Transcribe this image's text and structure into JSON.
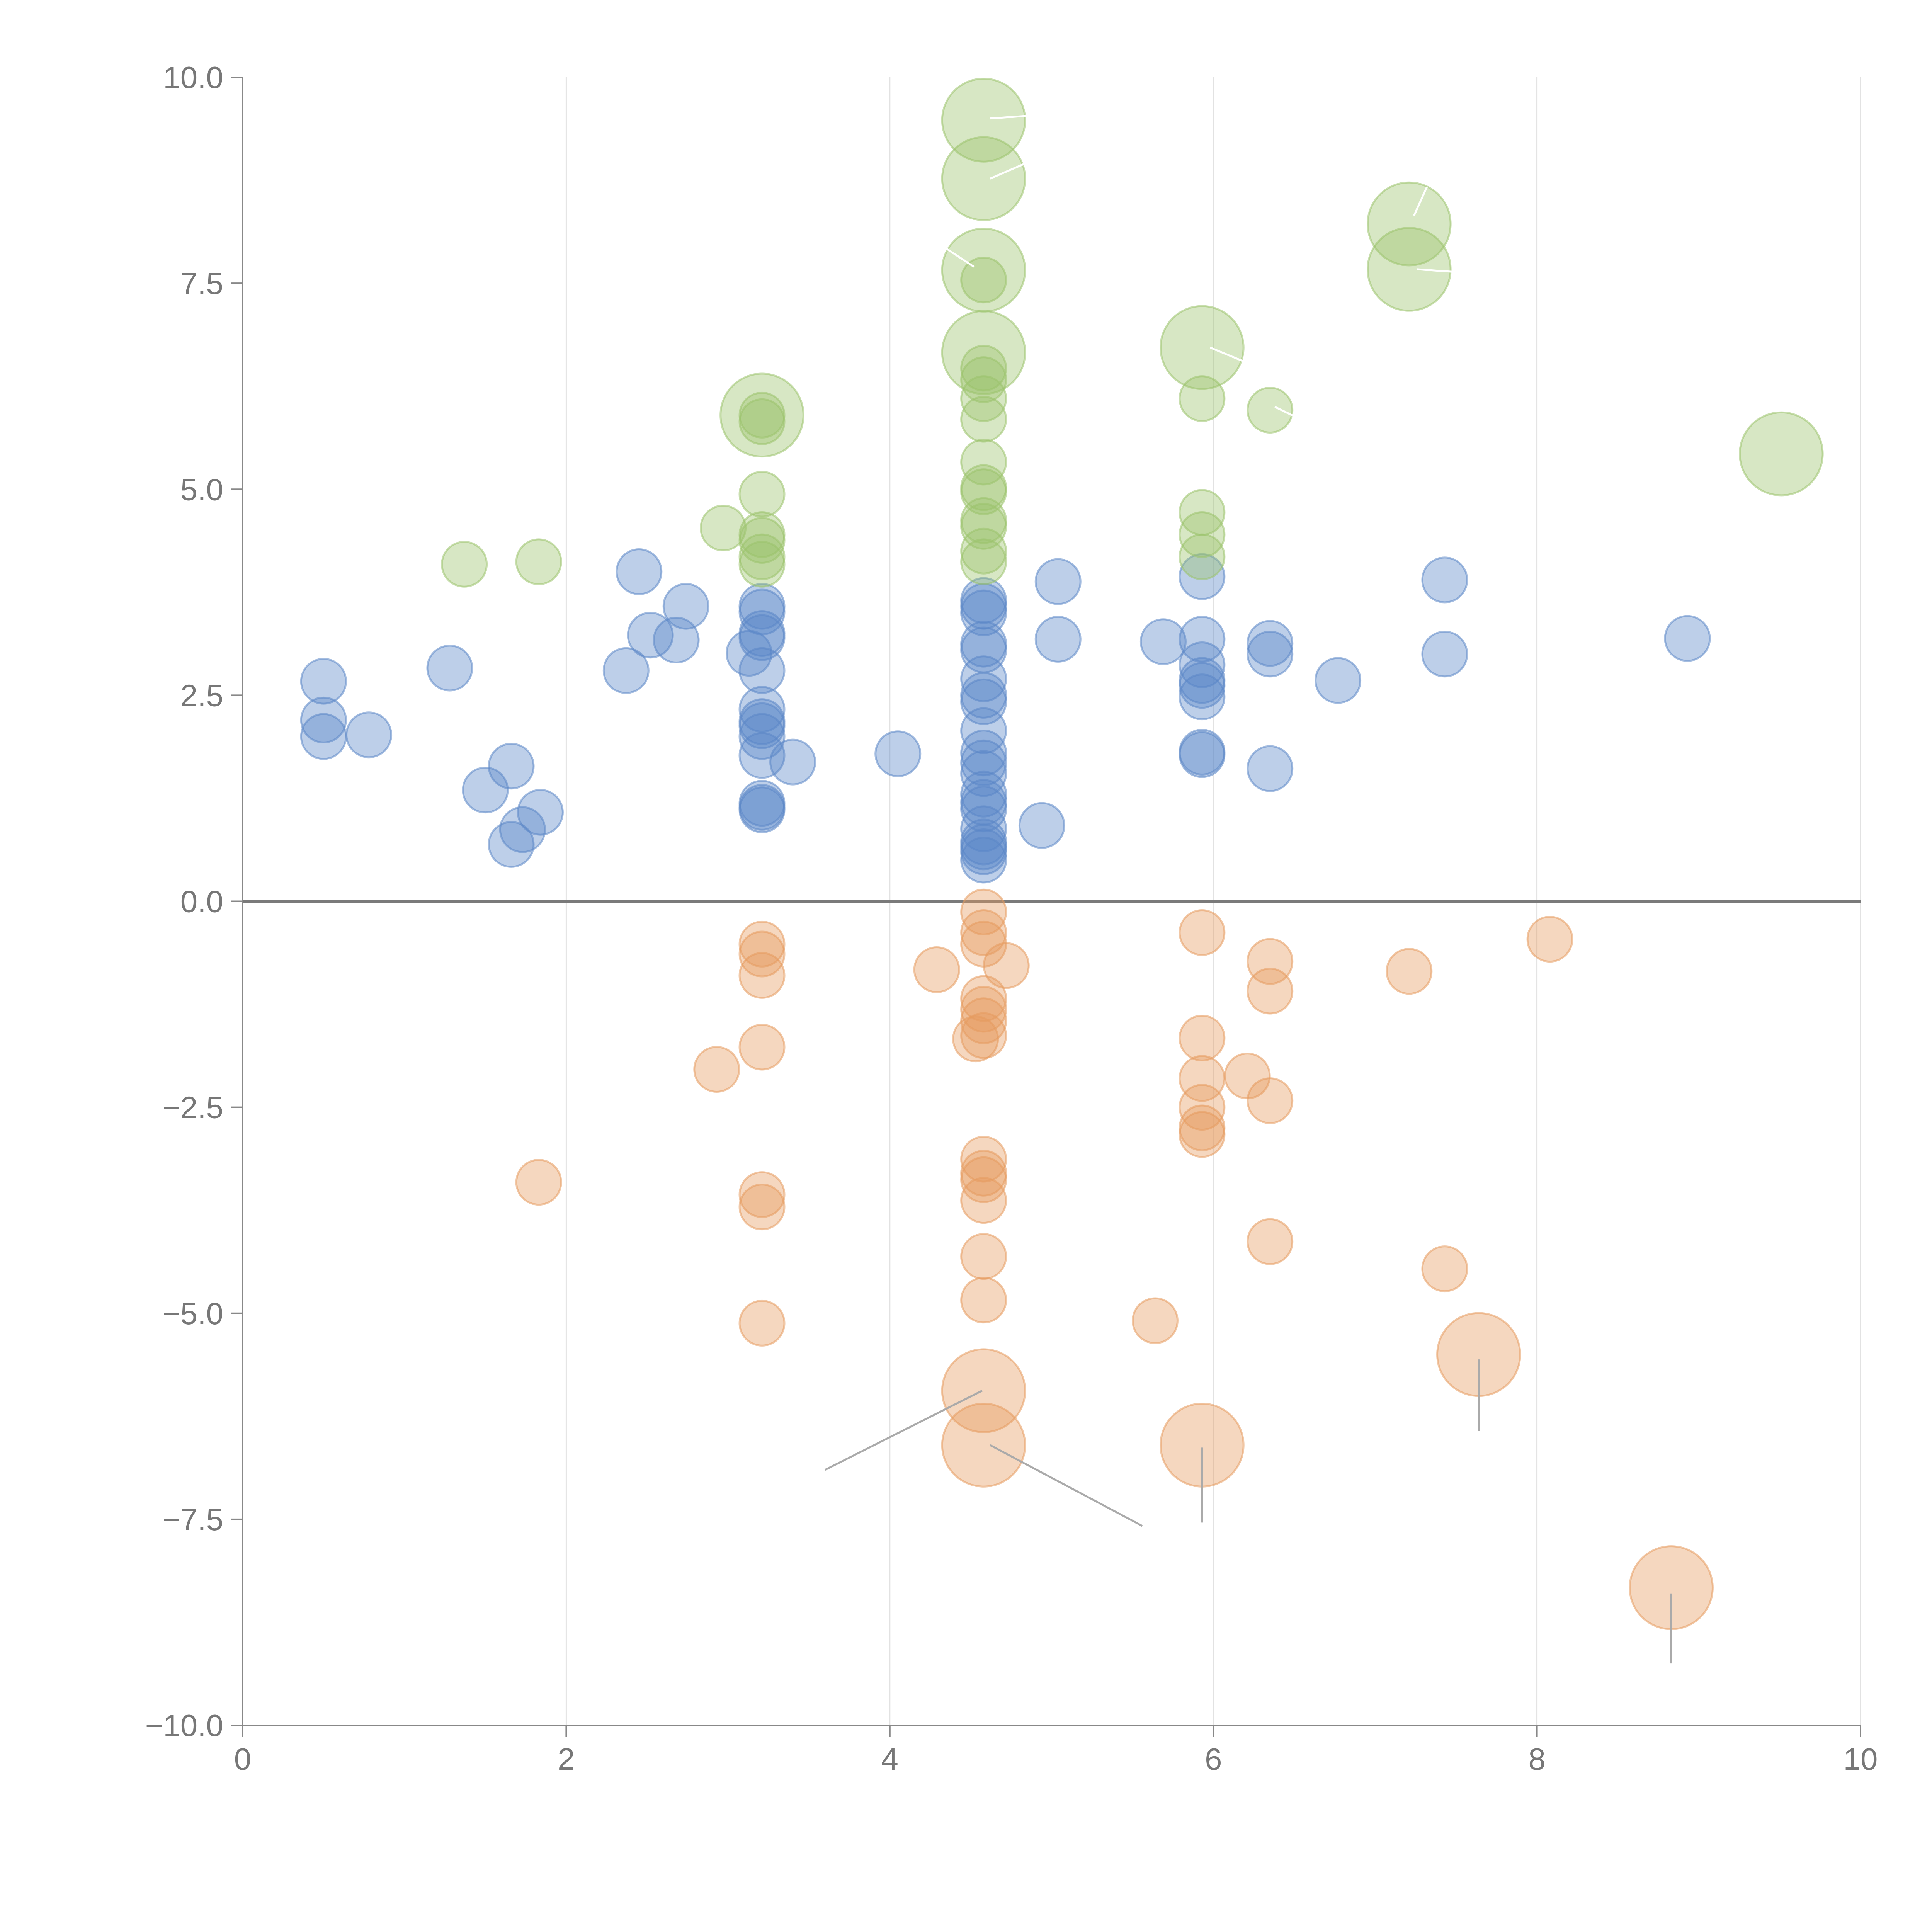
{
  "chart_data": {
    "type": "scatter",
    "title": "",
    "xlabel": "",
    "ylabel": "",
    "xlim": [
      0,
      10
    ],
    "ylim": [
      -10,
      10
    ],
    "grid": "vertical",
    "baseline": 0,
    "x_ticks": [
      "0",
      "2",
      "4",
      "6",
      "8",
      "10"
    ],
    "y_ticks": [
      "10.0",
      "7.5",
      "5.0",
      "2.5",
      "0.0",
      "−2.5",
      "−5.0",
      "−7.5",
      "−10.0"
    ],
    "series": [
      {
        "name": "blue",
        "color": "#5b87c7",
        "points": [
          [
            0.5,
            2.67,
            1
          ],
          [
            0.5,
            2.2,
            1
          ],
          [
            0.5,
            2.0,
            1
          ],
          [
            0.78,
            2.02,
            1
          ],
          [
            1.28,
            2.83,
            1
          ],
          [
            1.5,
            1.35,
            1
          ],
          [
            1.66,
            1.64,
            1
          ],
          [
            1.66,
            0.69,
            1
          ],
          [
            1.73,
            0.87,
            1
          ],
          [
            1.84,
            1.08,
            1
          ],
          [
            2.37,
            2.8,
            1
          ],
          [
            2.45,
            4.0,
            1
          ],
          [
            2.52,
            3.23,
            1
          ],
          [
            2.68,
            3.17,
            1
          ],
          [
            2.74,
            3.58,
            1
          ],
          [
            3.13,
            3.01,
            1
          ],
          [
            3.21,
            3.58,
            1
          ],
          [
            3.21,
            3.51,
            1
          ],
          [
            3.21,
            3.25,
            1
          ],
          [
            3.21,
            3.2,
            1
          ],
          [
            3.21,
            2.8,
            1
          ],
          [
            3.21,
            2.33,
            1
          ],
          [
            3.21,
            2.18,
            1
          ],
          [
            3.21,
            2.13,
            1
          ],
          [
            3.21,
            2.0,
            1
          ],
          [
            3.21,
            1.77,
            1
          ],
          [
            3.21,
            1.19,
            1
          ],
          [
            3.21,
            1.14,
            1
          ],
          [
            3.21,
            1.11,
            1
          ],
          [
            3.4,
            1.69,
            1
          ],
          [
            4.05,
            1.79,
            1
          ],
          [
            4.58,
            3.65,
            1
          ],
          [
            4.58,
            3.58,
            1
          ],
          [
            4.58,
            3.5,
            1
          ],
          [
            4.58,
            3.12,
            1
          ],
          [
            4.58,
            3.05,
            1
          ],
          [
            4.58,
            2.7,
            1
          ],
          [
            4.58,
            2.5,
            1
          ],
          [
            4.58,
            2.42,
            1
          ],
          [
            4.58,
            2.07,
            1
          ],
          [
            4.58,
            1.8,
            1
          ],
          [
            4.58,
            1.68,
            1
          ],
          [
            4.58,
            1.55,
            1
          ],
          [
            4.58,
            1.3,
            1
          ],
          [
            4.58,
            1.2,
            1
          ],
          [
            4.58,
            1.12,
            1
          ],
          [
            4.58,
            0.88,
            1
          ],
          [
            4.58,
            0.72,
            1
          ],
          [
            4.58,
            0.66,
            1
          ],
          [
            4.58,
            0.6,
            1
          ],
          [
            4.58,
            0.5,
            1
          ],
          [
            4.94,
            0.92,
            1
          ],
          [
            5.04,
            3.88,
            1
          ],
          [
            5.04,
            3.18,
            1
          ],
          [
            5.69,
            3.15,
            1
          ],
          [
            5.93,
            3.94,
            1
          ],
          [
            5.93,
            3.18,
            1
          ],
          [
            5.93,
            2.87,
            1
          ],
          [
            5.93,
            2.68,
            1
          ],
          [
            5.93,
            2.62,
            1
          ],
          [
            5.93,
            2.48,
            1
          ],
          [
            5.93,
            1.81,
            1
          ],
          [
            5.93,
            1.78,
            1
          ],
          [
            6.35,
            3.13,
            1
          ],
          [
            6.35,
            3.0,
            1
          ],
          [
            6.35,
            1.61,
            1
          ],
          [
            6.77,
            2.68,
            1
          ],
          [
            7.43,
            3.9,
            1
          ],
          [
            7.43,
            3.0,
            1
          ],
          [
            8.93,
            3.19,
            1
          ]
        ]
      },
      {
        "name": "green",
        "color": "#9bc26b",
        "points": [
          [
            1.37,
            4.09,
            1
          ],
          [
            1.83,
            4.12,
            1
          ],
          [
            2.97,
            4.53,
            1
          ],
          [
            3.21,
            5.9,
            1.85
          ],
          [
            3.21,
            5.9,
            1
          ],
          [
            3.21,
            5.82,
            1
          ],
          [
            3.21,
            4.94,
            1
          ],
          [
            3.21,
            4.45,
            1
          ],
          [
            3.21,
            4.38,
            1
          ],
          [
            3.21,
            4.18,
            1
          ],
          [
            3.21,
            4.09,
            1
          ],
          [
            4.58,
            9.48,
            1.85
          ],
          [
            4.58,
            8.77,
            1.85
          ],
          [
            4.58,
            7.66,
            1.85
          ],
          [
            4.58,
            7.54,
            1
          ],
          [
            4.58,
            6.66,
            1.85
          ],
          [
            4.58,
            6.47,
            1
          ],
          [
            4.58,
            6.33,
            1
          ],
          [
            4.58,
            6.1,
            1
          ],
          [
            4.58,
            5.85,
            1
          ],
          [
            4.58,
            5.33,
            1
          ],
          [
            4.58,
            5.02,
            1
          ],
          [
            4.58,
            4.97,
            1
          ],
          [
            4.58,
            4.62,
            1
          ],
          [
            4.58,
            4.55,
            1
          ],
          [
            4.58,
            4.25,
            1
          ],
          [
            4.58,
            4.12,
            1
          ],
          [
            5.93,
            6.72,
            1.85
          ],
          [
            5.93,
            6.1,
            1
          ],
          [
            5.93,
            4.72,
            1
          ],
          [
            5.93,
            4.45,
            1
          ],
          [
            5.93,
            4.18,
            1
          ],
          [
            6.35,
            5.96,
            1
          ],
          [
            7.21,
            8.22,
            1.85
          ],
          [
            7.21,
            7.67,
            1.85
          ],
          [
            9.51,
            5.43,
            1.85
          ]
        ]
      },
      {
        "name": "orange",
        "color": "#e69a5f",
        "points": [
          [
            1.83,
            -3.41,
            1
          ],
          [
            2.93,
            -2.04,
            1
          ],
          [
            3.21,
            -0.52,
            1
          ],
          [
            3.21,
            -0.64,
            1
          ],
          [
            3.21,
            -0.9,
            1
          ],
          [
            3.21,
            -1.77,
            1
          ],
          [
            3.21,
            -3.56,
            1
          ],
          [
            3.21,
            -3.71,
            1
          ],
          [
            3.21,
            -5.12,
            1
          ],
          [
            4.29,
            -0.83,
            1
          ],
          [
            4.58,
            -0.13,
            1
          ],
          [
            4.58,
            -0.38,
            1
          ],
          [
            4.58,
            -0.52,
            1
          ],
          [
            4.58,
            -1.18,
            1
          ],
          [
            4.58,
            -1.31,
            1
          ],
          [
            4.58,
            -1.45,
            1
          ],
          [
            4.58,
            -1.63,
            1
          ],
          [
            4.58,
            -3.13,
            1
          ],
          [
            4.58,
            -3.3,
            1
          ],
          [
            4.58,
            -3.38,
            1
          ],
          [
            4.58,
            -3.63,
            1
          ],
          [
            4.58,
            -4.31,
            1
          ],
          [
            4.58,
            -4.84,
            1
          ],
          [
            4.58,
            -5.94,
            1.85
          ],
          [
            4.58,
            -6.6,
            1.85
          ],
          [
            4.53,
            -1.67,
            1
          ],
          [
            4.72,
            -0.78,
            1
          ],
          [
            5.64,
            -5.09,
            1
          ],
          [
            5.93,
            -0.38,
            1
          ],
          [
            5.93,
            -1.66,
            1
          ],
          [
            5.93,
            -2.15,
            1
          ],
          [
            5.93,
            -2.5,
            1
          ],
          [
            5.93,
            -2.75,
            1
          ],
          [
            5.93,
            -2.83,
            1
          ],
          [
            5.93,
            -6.6,
            1.85
          ],
          [
            6.21,
            -2.12,
            1
          ],
          [
            6.35,
            -0.73,
            1
          ],
          [
            6.35,
            -1.09,
            1
          ],
          [
            6.35,
            -2.42,
            1
          ],
          [
            6.35,
            -4.13,
            1
          ],
          [
            7.21,
            -0.85,
            1
          ],
          [
            7.43,
            -4.46,
            1
          ],
          [
            7.64,
            -5.5,
            1.85
          ],
          [
            8.08,
            -0.46,
            1
          ],
          [
            8.83,
            -8.33,
            1.85
          ]
        ]
      }
    ],
    "annotation_leaders": [
      {
        "from": [
          4.62,
          9.5
        ],
        "to": [
          4.98,
          9.55
        ],
        "color": "#ffffff"
      },
      {
        "from": [
          4.62,
          8.77
        ],
        "to": [
          4.95,
          9.05
        ],
        "color": "#ffffff"
      },
      {
        "from": [
          4.52,
          7.7
        ],
        "to": [
          4.25,
          8.05
        ],
        "color": "#ffffff"
      },
      {
        "from": [
          5.98,
          6.72
        ],
        "to": [
          6.35,
          6.42
        ],
        "color": "#ffffff"
      },
      {
        "from": [
          6.38,
          6.0
        ],
        "to": [
          6.75,
          5.65
        ],
        "color": "#ffffff"
      },
      {
        "from": [
          7.24,
          8.32
        ],
        "to": [
          7.32,
          8.67
        ],
        "color": "#ffffff"
      },
      {
        "from": [
          7.26,
          7.67
        ],
        "to": [
          7.62,
          7.62
        ],
        "color": "#ffffff"
      },
      {
        "from": [
          4.57,
          -5.94
        ],
        "to": [
          3.6,
          -6.9
        ],
        "color": "#aaaaaa"
      },
      {
        "from": [
          4.62,
          -6.6
        ],
        "to": [
          5.56,
          -7.58
        ],
        "color": "#aaaaaa"
      },
      {
        "from": [
          5.93,
          -6.63
        ],
        "to": [
          5.93,
          -7.54
        ],
        "color": "#aaaaaa"
      },
      {
        "from": [
          7.64,
          -5.56
        ],
        "to": [
          7.64,
          -6.43
        ],
        "color": "#aaaaaa"
      },
      {
        "from": [
          8.83,
          -8.4
        ],
        "to": [
          8.83,
          -9.25
        ],
        "color": "#aaaaaa"
      }
    ]
  }
}
